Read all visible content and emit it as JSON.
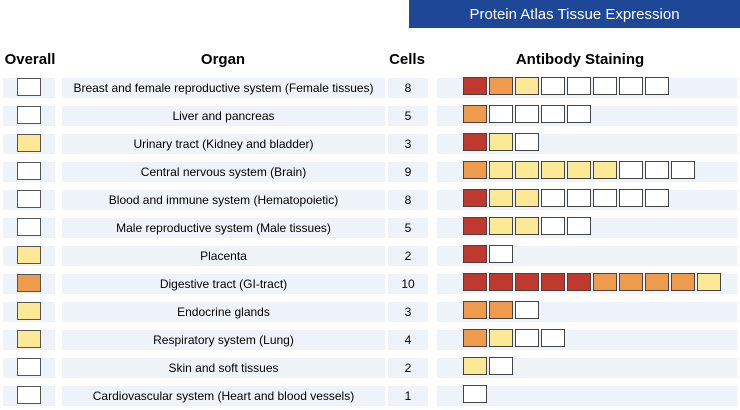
{
  "title": "Protein Atlas Tissue Expression",
  "headers": {
    "overall": "Overall",
    "organ": "Organ",
    "cells": "Cells",
    "staining": "Antibody Staining"
  },
  "colors": {
    "high": "#c0392f",
    "medium": "#ee9b4e",
    "low": "#fde896",
    "none": "#ffffff",
    "title_bg": "#1e4797"
  },
  "rows": [
    {
      "overall": "none",
      "organ": "Breast and female reproductive system (Female tissues)",
      "cells": "8",
      "staining": [
        "high",
        "medium",
        "low",
        "none",
        "none",
        "none",
        "none",
        "none"
      ]
    },
    {
      "overall": "none",
      "organ": "Liver and pancreas",
      "cells": "5",
      "staining": [
        "medium",
        "none",
        "none",
        "none",
        "none"
      ]
    },
    {
      "overall": "low",
      "organ": "Urinary tract (Kidney and bladder)",
      "cells": "3",
      "staining": [
        "high",
        "low",
        "none"
      ]
    },
    {
      "overall": "none",
      "organ": "Central nervous system (Brain)",
      "cells": "9",
      "staining": [
        "medium",
        "low",
        "low",
        "low",
        "low",
        "low",
        "none",
        "none",
        "none"
      ]
    },
    {
      "overall": "none",
      "organ": "Blood and immune system (Hematopoietic)",
      "cells": "8",
      "staining": [
        "high",
        "low",
        "low",
        "none",
        "none",
        "none",
        "none",
        "none"
      ]
    },
    {
      "overall": "none",
      "organ": "Male reproductive system (Male tissues)",
      "cells": "5",
      "staining": [
        "high",
        "low",
        "low",
        "none",
        "none"
      ]
    },
    {
      "overall": "low",
      "organ": "Placenta",
      "cells": "2",
      "staining": [
        "high",
        "none"
      ]
    },
    {
      "overall": "medium",
      "organ": "Digestive tract (GI-tract)",
      "cells": "10",
      "staining": [
        "high",
        "high",
        "high",
        "high",
        "high",
        "medium",
        "medium",
        "medium",
        "medium",
        "low"
      ]
    },
    {
      "overall": "low",
      "organ": "Endocrine glands",
      "cells": "3",
      "staining": [
        "medium",
        "medium",
        "none"
      ]
    },
    {
      "overall": "low",
      "organ": "Respiratory system (Lung)",
      "cells": "4",
      "staining": [
        "medium",
        "low",
        "none",
        "none"
      ]
    },
    {
      "overall": "none",
      "organ": "Skin and soft tissues",
      "cells": "2",
      "staining": [
        "low",
        "none"
      ]
    },
    {
      "overall": "none",
      "organ": "Cardiovascular system (Heart and blood vessels)",
      "cells": "1",
      "staining": [
        "none"
      ]
    }
  ]
}
